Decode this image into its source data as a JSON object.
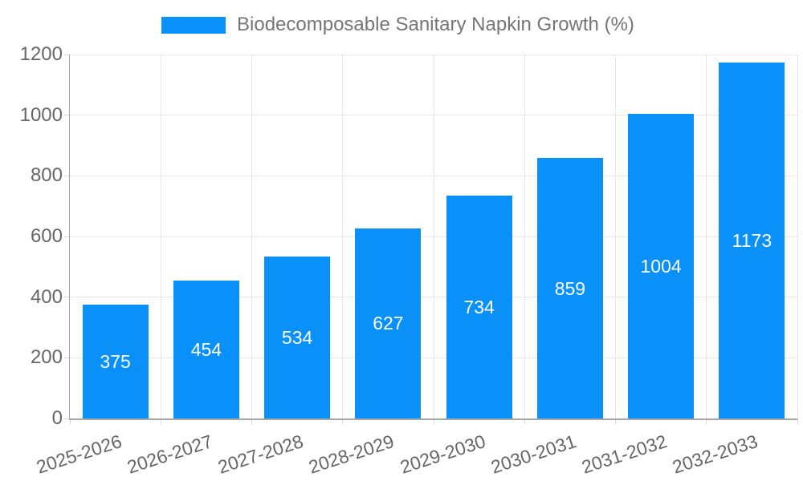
{
  "legend": {
    "label": "Biodecomposable Sanitary Napkin Growth (%)"
  },
  "chart_data": {
    "type": "bar",
    "title": "",
    "legend_entries": [
      "Biodecomposable Sanitary Napkin Growth (%)"
    ],
    "legend_position": "top",
    "categories": [
      "2025-2026",
      "2026-2027",
      "2027-2028",
      "2028-2029",
      "2029-2030",
      "2030-2031",
      "2031-2032",
      "2032-2033"
    ],
    "values": [
      375,
      454,
      534,
      627,
      734,
      859,
      1004,
      1173
    ],
    "value_labels_shown": true,
    "xlabel": "",
    "ylabel": "",
    "ylim": [
      0,
      1200
    ],
    "yticks": [
      0,
      200,
      400,
      600,
      800,
      1000,
      1200
    ],
    "grid": true,
    "colors": {
      "bar": "#0a91f9",
      "gridline": "#e6e6e6",
      "axis_line": "#a6a6a6",
      "tick_mark": "#d6d6d6",
      "axis_text": "#666666",
      "legend_text": "#757575",
      "value_label_text": "#ffffff",
      "background": "#ffffff"
    }
  }
}
